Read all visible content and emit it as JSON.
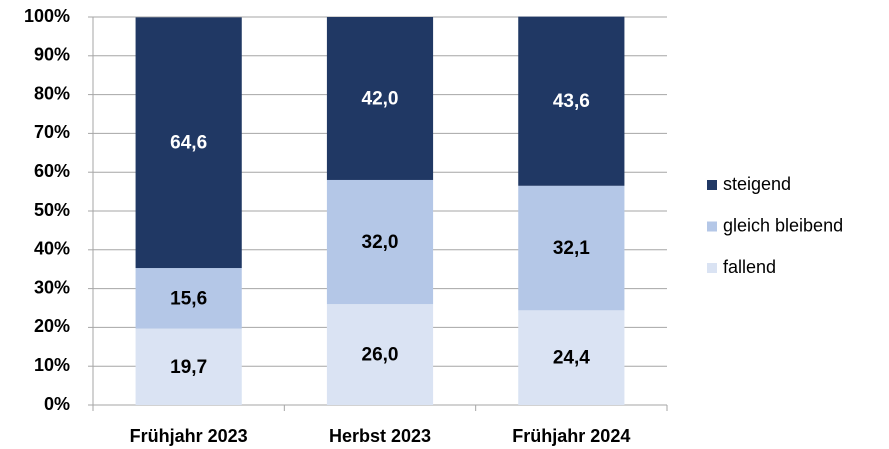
{
  "chart_data": {
    "type": "stacked_bar_percent",
    "categories": [
      "Frühjahr 2023",
      "Herbst 2023",
      "Frühjahr 2024"
    ],
    "series": [
      {
        "name": "fallend",
        "color": "#dae3f3",
        "values": [
          19.7,
          26.0,
          24.4
        ],
        "value_labels": [
          "19,7",
          "26,0",
          "24,4"
        ]
      },
      {
        "name": "gleich bleibend",
        "color": "#b4c7e7",
        "values": [
          15.6,
          32.0,
          32.1
        ],
        "value_labels": [
          "15,6",
          "32,0",
          "32,1"
        ]
      },
      {
        "name": "steigend",
        "color": "#203864",
        "values": [
          64.6,
          42.0,
          43.6
        ],
        "value_labels": [
          "64,6",
          "42,0",
          "43,6"
        ]
      }
    ],
    "ylim": [
      0,
      100
    ],
    "yticks": [
      {
        "value": 0,
        "label": "0%"
      },
      {
        "value": 10,
        "label": "10%"
      },
      {
        "value": 20,
        "label": "20%"
      },
      {
        "value": 30,
        "label": "30%"
      },
      {
        "value": 40,
        "label": "40%"
      },
      {
        "value": 50,
        "label": "50%"
      },
      {
        "value": 60,
        "label": "60%"
      },
      {
        "value": 70,
        "label": "70%"
      },
      {
        "value": 80,
        "label": "80%"
      },
      {
        "value": 90,
        "label": "90%"
      },
      {
        "value": 100,
        "label": "100%"
      }
    ],
    "grid": true,
    "legend": "right"
  }
}
